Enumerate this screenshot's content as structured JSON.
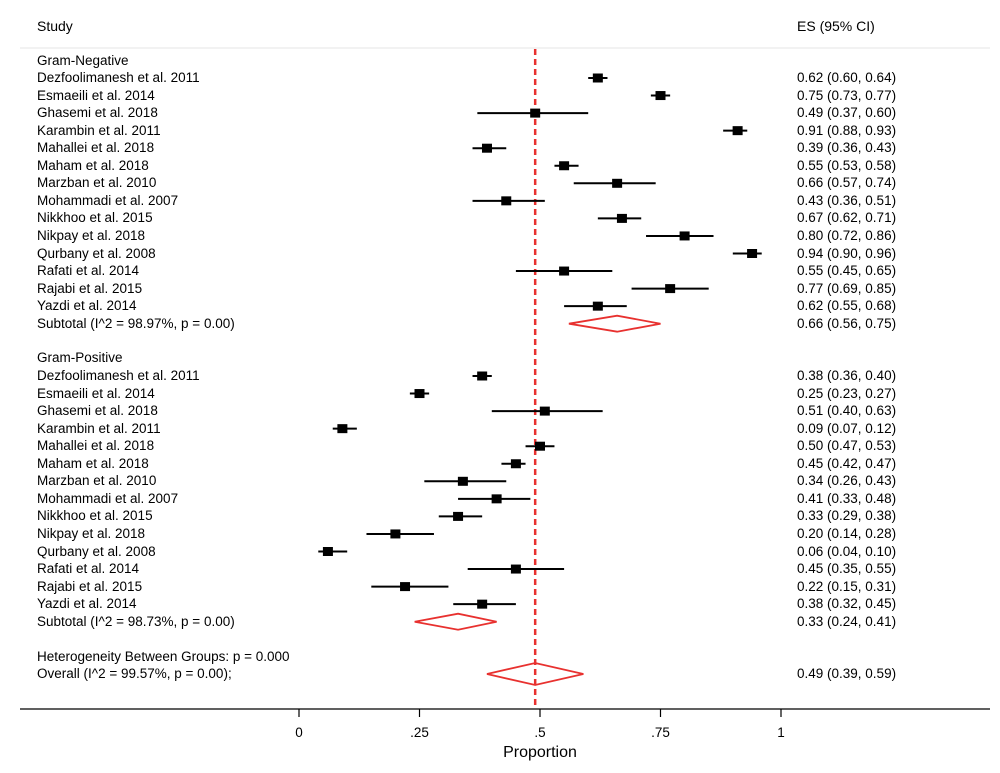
{
  "header": {
    "study": "Study",
    "es": "ES (95% CI)"
  },
  "chart_data": {
    "type": "forest",
    "xlabel": "Proportion",
    "xlim": [
      0,
      1
    ],
    "xticks": [
      {
        "v": 0,
        "label": "0"
      },
      {
        "v": 0.25,
        "label": ".25"
      },
      {
        "v": 0.5,
        "label": ".5"
      },
      {
        "v": 0.75,
        "label": ".75"
      },
      {
        "v": 1,
        "label": "1"
      }
    ],
    "reference_line": 0.49,
    "groups": [
      {
        "name": "Gram-Negative",
        "studies": [
          {
            "label": "Dezfoolimanesh et al. 2011",
            "es": 0.62,
            "lo": 0.6,
            "hi": 0.64,
            "text": "0.62 (0.60, 0.64)"
          },
          {
            "label": "Esmaeili et al. 2014",
            "es": 0.75,
            "lo": 0.73,
            "hi": 0.77,
            "text": "0.75 (0.73, 0.77)"
          },
          {
            "label": "Ghasemi et al. 2018",
            "es": 0.49,
            "lo": 0.37,
            "hi": 0.6,
            "text": "0.49 (0.37, 0.60)"
          },
          {
            "label": "Karambin et al. 2011",
            "es": 0.91,
            "lo": 0.88,
            "hi": 0.93,
            "text": "0.91 (0.88, 0.93)"
          },
          {
            "label": "Mahallei et al. 2018",
            "es": 0.39,
            "lo": 0.36,
            "hi": 0.43,
            "text": "0.39 (0.36, 0.43)"
          },
          {
            "label": "Maham et al. 2018",
            "es": 0.55,
            "lo": 0.53,
            "hi": 0.58,
            "text": "0.55 (0.53, 0.58)"
          },
          {
            "label": "Marzban et al. 2010",
            "es": 0.66,
            "lo": 0.57,
            "hi": 0.74,
            "text": "0.66 (0.57, 0.74)"
          },
          {
            "label": "Mohammadi et al. 2007",
            "es": 0.43,
            "lo": 0.36,
            "hi": 0.51,
            "text": "0.43 (0.36, 0.51)"
          },
          {
            "label": "Nikkhoo et al. 2015",
            "es": 0.67,
            "lo": 0.62,
            "hi": 0.71,
            "text": "0.67 (0.62, 0.71)"
          },
          {
            "label": "Nikpay et al. 2018",
            "es": 0.8,
            "lo": 0.72,
            "hi": 0.86,
            "text": "0.80 (0.72, 0.86)"
          },
          {
            "label": "Qurbany et al. 2008",
            "es": 0.94,
            "lo": 0.9,
            "hi": 0.96,
            "text": "0.94 (0.90, 0.96)"
          },
          {
            "label": "Rafati et al. 2014",
            "es": 0.55,
            "lo": 0.45,
            "hi": 0.65,
            "text": "0.55 (0.45, 0.65)"
          },
          {
            "label": "Rajabi et al. 2015",
            "es": 0.77,
            "lo": 0.69,
            "hi": 0.85,
            "text": "0.77 (0.69, 0.85)"
          },
          {
            "label": "Yazdi et al. 2014",
            "es": 0.62,
            "lo": 0.55,
            "hi": 0.68,
            "text": "0.62 (0.55, 0.68)"
          }
        ],
        "subtotal": {
          "label": "Subtotal  (I^2 = 98.97%, p = 0.00)",
          "es": 0.66,
          "lo": 0.56,
          "hi": 0.75,
          "text": "0.66 (0.56, 0.75)"
        }
      },
      {
        "name": "Gram-Positive",
        "studies": [
          {
            "label": "Dezfoolimanesh et al. 2011",
            "es": 0.38,
            "lo": 0.36,
            "hi": 0.4,
            "text": "0.38 (0.36, 0.40)"
          },
          {
            "label": "Esmaeili et al. 2014",
            "es": 0.25,
            "lo": 0.23,
            "hi": 0.27,
            "text": "0.25 (0.23, 0.27)"
          },
          {
            "label": "Ghasemi et al. 2018",
            "es": 0.51,
            "lo": 0.4,
            "hi": 0.63,
            "text": "0.51 (0.40, 0.63)"
          },
          {
            "label": "Karambin et al. 2011",
            "es": 0.09,
            "lo": 0.07,
            "hi": 0.12,
            "text": "0.09 (0.07, 0.12)"
          },
          {
            "label": "Mahallei et al. 2018",
            "es": 0.5,
            "lo": 0.47,
            "hi": 0.53,
            "text": "0.50 (0.47, 0.53)"
          },
          {
            "label": "Maham et al. 2018",
            "es": 0.45,
            "lo": 0.42,
            "hi": 0.47,
            "text": "0.45 (0.42, 0.47)"
          },
          {
            "label": "Marzban et al. 2010",
            "es": 0.34,
            "lo": 0.26,
            "hi": 0.43,
            "text": "0.34 (0.26, 0.43)"
          },
          {
            "label": "Mohammadi et al. 2007",
            "es": 0.41,
            "lo": 0.33,
            "hi": 0.48,
            "text": "0.41 (0.33, 0.48)"
          },
          {
            "label": "Nikkhoo et al. 2015",
            "es": 0.33,
            "lo": 0.29,
            "hi": 0.38,
            "text": "0.33 (0.29, 0.38)"
          },
          {
            "label": "Nikpay et al. 2018",
            "es": 0.2,
            "lo": 0.14,
            "hi": 0.28,
            "text": "0.20 (0.14, 0.28)"
          },
          {
            "label": "Qurbany et al. 2008",
            "es": 0.06,
            "lo": 0.04,
            "hi": 0.1,
            "text": "0.06 (0.04, 0.10)"
          },
          {
            "label": "Rafati et al. 2014",
            "es": 0.45,
            "lo": 0.35,
            "hi": 0.55,
            "text": "0.45 (0.35, 0.55)"
          },
          {
            "label": "Rajabi et al. 2015",
            "es": 0.22,
            "lo": 0.15,
            "hi": 0.31,
            "text": "0.22 (0.15, 0.31)"
          },
          {
            "label": "Yazdi et al. 2014",
            "es": 0.38,
            "lo": 0.32,
            "hi": 0.45,
            "text": "0.38 (0.32, 0.45)"
          }
        ],
        "subtotal": {
          "label": "Subtotal  (I^2 = 98.73%, p = 0.00)",
          "es": 0.33,
          "lo": 0.24,
          "hi": 0.41,
          "text": "0.33 (0.24, 0.41)"
        }
      }
    ],
    "heterogeneity": "Heterogeneity Between Groups: p = 0.000",
    "overall": {
      "label": "Overall  (I^2 = 99.57%, p = 0.00);",
      "es": 0.49,
      "lo": 0.39,
      "hi": 0.59,
      "text": "0.49 (0.39, 0.59)"
    },
    "colors": {
      "diamond": "#e8312f",
      "reference": "#e8312f",
      "marker": "#000000",
      "rule": "#e6e6e6"
    }
  }
}
